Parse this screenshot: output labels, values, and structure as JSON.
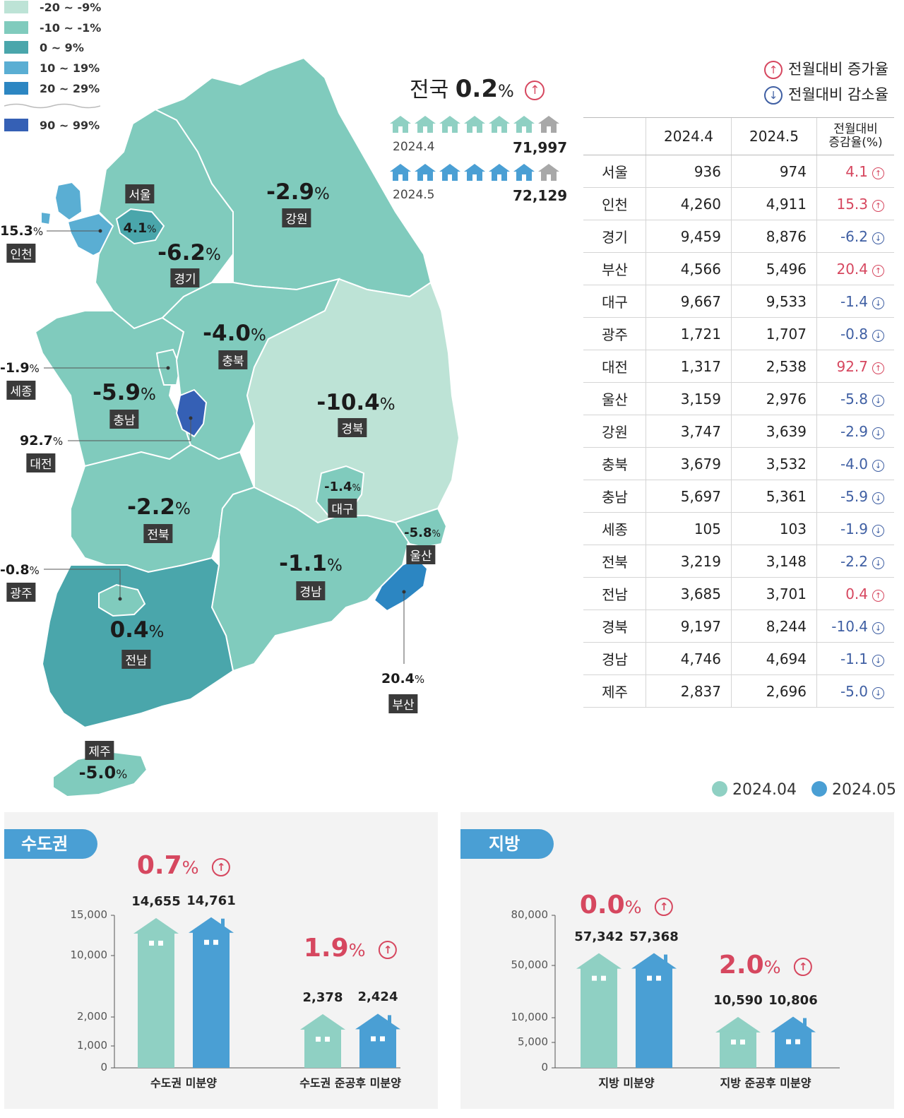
{
  "legend": {
    "items": [
      {
        "label": "-20 ~ -9%",
        "color": "#bde3d6"
      },
      {
        "label": "-10 ~ -1%",
        "color": "#80cbbd"
      },
      {
        "label": "0 ~ 9%",
        "color": "#4aa6ab"
      },
      {
        "label": "10 ~ 19%",
        "color": "#5aaed3"
      },
      {
        "label": "20 ~ 29%",
        "color": "#2c86c2"
      },
      {
        "label": "90 ~ 99%",
        "color": "#3560b5"
      }
    ]
  },
  "national": {
    "label": "전국",
    "rate": "0.2",
    "unit": "%",
    "y2024_4_label": "2024.4",
    "y2024_4_value": "71,997",
    "y2024_5_label": "2024.5",
    "y2024_5_value": "72,129"
  },
  "arrow_legend": {
    "up": "전월대비 증가율",
    "down": "전월대비 감소율"
  },
  "map_labels": {
    "seoul": {
      "name": "서울",
      "rate": "4.1"
    },
    "incheon": {
      "name": "인천",
      "rate": "15.3"
    },
    "gyeonggi": {
      "name": "경기",
      "rate": "-6.2"
    },
    "gangwon": {
      "name": "강원",
      "rate": "-2.9"
    },
    "chungbuk": {
      "name": "충북",
      "rate": "-4.0"
    },
    "sejong": {
      "name": "세종",
      "rate": "-1.9"
    },
    "chungnam": {
      "name": "충남",
      "rate": "-5.9"
    },
    "daejeon": {
      "name": "대전",
      "rate": "92.7"
    },
    "gyeongbuk": {
      "name": "경북",
      "rate": "-10.4"
    },
    "daegu": {
      "name": "대구",
      "rate": "-1.4"
    },
    "jeonbuk": {
      "name": "전북",
      "rate": "-2.2"
    },
    "ulsan": {
      "name": "울산",
      "rate": "-5.8"
    },
    "gwangju": {
      "name": "광주",
      "rate": "-0.8"
    },
    "gyeongnam": {
      "name": "경남",
      "rate": "-1.1"
    },
    "jeonnam": {
      "name": "전남",
      "rate": "0.4"
    },
    "busan": {
      "name": "부산",
      "rate": "20.4"
    },
    "jeju": {
      "name": "제주",
      "rate": "-5.0"
    },
    "unit": "%"
  },
  "table": {
    "headers": [
      "",
      "2024.4",
      "2024.5",
      "전월대비\n증감율(%)"
    ],
    "rows": [
      {
        "region": "서울",
        "a": "936",
        "b": "974",
        "rate": "4.1",
        "dir": "up"
      },
      {
        "region": "인천",
        "a": "4,260",
        "b": "4,911",
        "rate": "15.3",
        "dir": "up"
      },
      {
        "region": "경기",
        "a": "9,459",
        "b": "8,876",
        "rate": "-6.2",
        "dir": "down"
      },
      {
        "region": "부산",
        "a": "4,566",
        "b": "5,496",
        "rate": "20.4",
        "dir": "up"
      },
      {
        "region": "대구",
        "a": "9,667",
        "b": "9,533",
        "rate": "-1.4",
        "dir": "down"
      },
      {
        "region": "광주",
        "a": "1,721",
        "b": "1,707",
        "rate": "-0.8",
        "dir": "down"
      },
      {
        "region": "대전",
        "a": "1,317",
        "b": "2,538",
        "rate": "92.7",
        "dir": "up"
      },
      {
        "region": "울산",
        "a": "3,159",
        "b": "2,976",
        "rate": "-5.8",
        "dir": "down"
      },
      {
        "region": "강원",
        "a": "3,747",
        "b": "3,639",
        "rate": "-2.9",
        "dir": "down"
      },
      {
        "region": "충북",
        "a": "3,679",
        "b": "3,532",
        "rate": "-4.0",
        "dir": "down"
      },
      {
        "region": "충남",
        "a": "5,697",
        "b": "5,361",
        "rate": "-5.9",
        "dir": "down"
      },
      {
        "region": "세종",
        "a": "105",
        "b": "103",
        "rate": "-1.9",
        "dir": "down"
      },
      {
        "region": "전북",
        "a": "3,219",
        "b": "3,148",
        "rate": "-2.2",
        "dir": "down"
      },
      {
        "region": "전남",
        "a": "3,685",
        "b": "3,701",
        "rate": "0.4",
        "dir": "up"
      },
      {
        "region": "경북",
        "a": "9,197",
        "b": "8,244",
        "rate": "-10.4",
        "dir": "down"
      },
      {
        "region": "경남",
        "a": "4,746",
        "b": "4,694",
        "rate": "-1.1",
        "dir": "down"
      },
      {
        "region": "제주",
        "a": "2,837",
        "b": "2,696",
        "rate": "-5.0",
        "dir": "down"
      }
    ]
  },
  "series_legend": {
    "s1": {
      "label": "2024.04",
      "color": "#8fd0c3"
    },
    "s2": {
      "label": "2024.05",
      "color": "#4a9fd4"
    }
  },
  "chart_data": [
    {
      "type": "bar",
      "title": "수도권",
      "categories": [
        "수도권 미분양",
        "수도권 준공후 미분양"
      ],
      "series": [
        {
          "name": "2024.04",
          "values": [
            14655,
            2378
          ]
        },
        {
          "name": "2024.05",
          "values": [
            14761,
            2424
          ]
        }
      ],
      "value_labels": {
        "2024.04": [
          "14,655",
          "2,378"
        ],
        "2024.05": [
          "14,761",
          "2,424"
        ]
      },
      "rates": [
        "0.7",
        "1.9"
      ],
      "yticks": [
        "0",
        "1,000",
        "2,000",
        "10,000",
        "15,000"
      ],
      "ytick_values": [
        0,
        1000,
        2000,
        10000,
        15000
      ],
      "scale": "broken"
    },
    {
      "type": "bar",
      "title": "지방",
      "categories": [
        "지방 미분양",
        "지방 준공후 미분양"
      ],
      "series": [
        {
          "name": "2024.04",
          "values": [
            57342,
            10590
          ]
        },
        {
          "name": "2024.05",
          "values": [
            57368,
            10806
          ]
        }
      ],
      "value_labels": {
        "2024.04": [
          "57,342",
          "10,590"
        ],
        "2024.05": [
          "57,368",
          "10,806"
        ]
      },
      "rates": [
        "0.0",
        "2.0"
      ],
      "yticks": [
        "0",
        "5,000",
        "10,000",
        "50,000",
        "80,000"
      ],
      "ytick_values": [
        0,
        5000,
        10000,
        50000,
        80000
      ],
      "scale": "broken"
    }
  ]
}
